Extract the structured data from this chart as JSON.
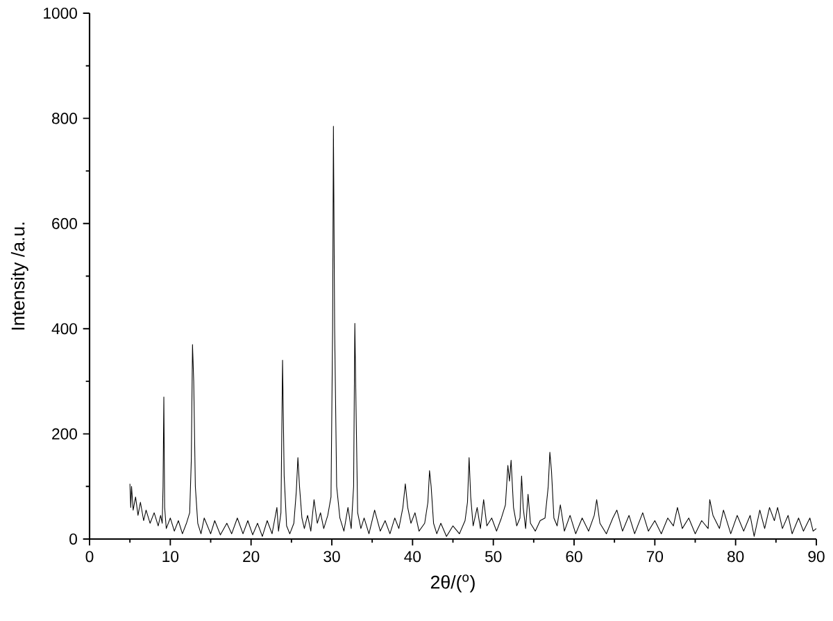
{
  "chart_data": {
    "type": "line",
    "xlabel": "2θ/($^{o}$)",
    "ylabel": "Intensity /a.u.",
    "color": "#000000",
    "xlim": [
      0,
      90
    ],
    "ylim": [
      0,
      1000
    ],
    "xticks": [
      0,
      10,
      20,
      30,
      40,
      50,
      60,
      70,
      80,
      90
    ],
    "yticks": [
      0,
      200,
      400,
      600,
      800,
      1000
    ],
    "x": [
      5.0,
      5.1,
      5.2,
      5.4,
      5.7,
      6.0,
      6.3,
      6.7,
      7.0,
      7.5,
      8.0,
      8.5,
      8.8,
      9.0,
      9.1,
      9.2,
      9.3,
      9.5,
      10.0,
      10.5,
      11.0,
      11.5,
      12.0,
      12.4,
      12.6,
      12.75,
      12.9,
      13.1,
      13.4,
      13.8,
      14.2,
      15.0,
      15.5,
      16.2,
      17.0,
      17.6,
      18.3,
      19.0,
      19.6,
      20.2,
      20.8,
      21.4,
      22.0,
      22.6,
      23.2,
      23.4,
      23.7,
      23.9,
      24.1,
      24.4,
      24.8,
      25.3,
      25.6,
      25.8,
      26.0,
      26.3,
      26.6,
      27.0,
      27.4,
      27.8,
      28.2,
      28.6,
      29.0,
      29.5,
      29.9,
      30.1,
      30.2,
      30.35,
      30.6,
      31.0,
      31.5,
      32.0,
      32.4,
      32.7,
      32.85,
      33.0,
      33.2,
      33.6,
      34.0,
      34.6,
      35.3,
      36.0,
      36.6,
      37.2,
      37.8,
      38.3,
      38.8,
      39.1,
      39.4,
      39.8,
      40.3,
      40.8,
      41.5,
      41.9,
      42.1,
      42.3,
      42.6,
      43.0,
      43.5,
      44.2,
      45.0,
      45.8,
      46.5,
      46.8,
      47.0,
      47.2,
      47.5,
      48.0,
      48.4,
      48.8,
      49.2,
      49.8,
      50.4,
      51.0,
      51.5,
      51.8,
      52.0,
      52.2,
      52.5,
      52.9,
      53.3,
      53.5,
      53.7,
      54.0,
      54.3,
      54.6,
      55.2,
      55.8,
      56.4,
      56.8,
      57.0,
      57.2,
      57.5,
      57.9,
      58.3,
      58.8,
      59.5,
      60.2,
      61.0,
      61.8,
      62.5,
      62.8,
      63.2,
      64.0,
      64.8,
      65.3,
      66.0,
      66.8,
      67.5,
      68.5,
      69.2,
      70.0,
      70.8,
      71.6,
      72.3,
      72.8,
      73.4,
      74.2,
      75.0,
      75.8,
      76.6,
      76.8,
      77.2,
      78.0,
      78.5,
      79.4,
      80.2,
      81.0,
      81.8,
      82.3,
      83.0,
      83.6,
      84.2,
      84.8,
      85.2,
      85.8,
      86.5,
      87.0,
      87.8,
      88.4,
      89.2,
      89.6,
      90.0
    ],
    "values": [
      105,
      60,
      100,
      55,
      80,
      45,
      70,
      35,
      55,
      30,
      50,
      25,
      45,
      30,
      100,
      270,
      60,
      20,
      40,
      15,
      35,
      10,
      30,
      50,
      150,
      370,
      300,
      100,
      30,
      10,
      40,
      10,
      35,
      8,
      30,
      10,
      40,
      10,
      35,
      8,
      30,
      5,
      35,
      10,
      60,
      15,
      50,
      340,
      120,
      25,
      10,
      30,
      90,
      155,
      100,
      40,
      20,
      45,
      15,
      75,
      30,
      50,
      20,
      45,
      80,
      400,
      785,
      400,
      100,
      40,
      15,
      60,
      20,
      100,
      410,
      250,
      50,
      20,
      40,
      10,
      55,
      15,
      35,
      10,
      40,
      20,
      60,
      105,
      60,
      30,
      50,
      15,
      30,
      70,
      130,
      100,
      30,
      10,
      30,
      5,
      25,
      10,
      35,
      70,
      155,
      80,
      25,
      60,
      20,
      75,
      25,
      40,
      15,
      40,
      65,
      140,
      110,
      150,
      60,
      25,
      40,
      120,
      60,
      20,
      85,
      30,
      15,
      35,
      40,
      100,
      165,
      130,
      40,
      25,
      65,
      15,
      45,
      10,
      40,
      15,
      45,
      75,
      30,
      10,
      40,
      55,
      15,
      45,
      10,
      50,
      15,
      35,
      10,
      40,
      25,
      60,
      20,
      40,
      10,
      35,
      20,
      75,
      45,
      20,
      55,
      10,
      45,
      15,
      45,
      5,
      55,
      20,
      60,
      35,
      60,
      20,
      45,
      10,
      40,
      15,
      40,
      15,
      20
    ]
  }
}
